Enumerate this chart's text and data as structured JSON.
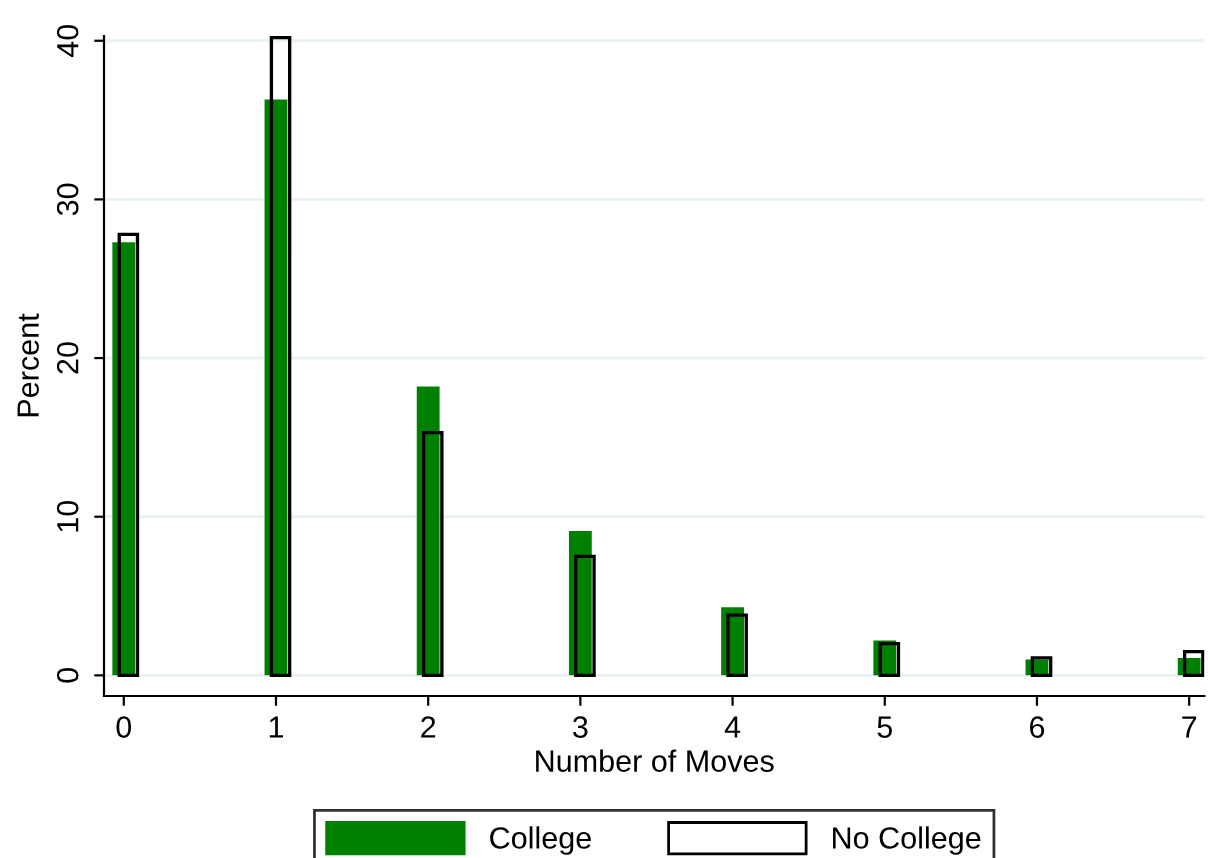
{
  "chart_data": {
    "type": "bar",
    "xlabel": "Number of Moves",
    "ylabel": "Percent",
    "x": [
      0,
      1,
      2,
      3,
      4,
      5,
      6,
      7
    ],
    "series": [
      {
        "name": "College",
        "color": "#008000",
        "values": [
          27.3,
          36.3,
          18.2,
          9.1,
          4.3,
          2.2,
          1.0,
          1.1
        ]
      },
      {
        "name": "No College",
        "color": "#000000",
        "values": [
          27.8,
          40.2,
          15.3,
          7.5,
          3.8,
          2.0,
          1.1,
          1.5
        ]
      }
    ],
    "xlim": [
      -0.13,
      7.1
    ],
    "xticks": [
      0,
      1,
      2,
      3,
      4,
      5,
      6,
      7
    ],
    "ylim": [
      -1.3,
      40.3
    ],
    "yticks": [
      0,
      10,
      20,
      30,
      40
    ],
    "grid": "y",
    "legend": "bottom"
  }
}
